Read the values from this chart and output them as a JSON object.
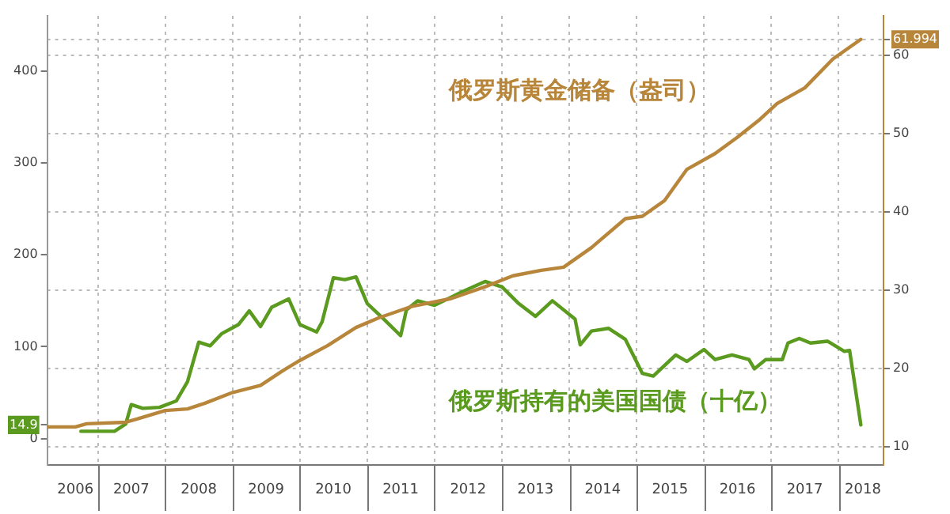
{
  "chart_data": {
    "type": "line",
    "grid": true,
    "legend": false,
    "marker": "none",
    "line_style": "solid",
    "xlim": [
      "2006-04",
      "2018-09"
    ],
    "xticks": [
      {
        "value": "2006-09-01",
        "label": "2006"
      },
      {
        "value": "2007-01-01",
        "label": null
      },
      {
        "value": "2007-07-01",
        "label": "2007"
      },
      {
        "value": "2008-01-01",
        "label": null
      },
      {
        "value": "2008-07-01",
        "label": "2008"
      },
      {
        "value": "2009-01-01",
        "label": null
      },
      {
        "value": "2009-07-01",
        "label": "2009"
      },
      {
        "value": "2010-01-01",
        "label": null
      },
      {
        "value": "2010-07-01",
        "label": "2010"
      },
      {
        "value": "2011-01-01",
        "label": null
      },
      {
        "value": "2011-07-01",
        "label": "2011"
      },
      {
        "value": "2012-01-01",
        "label": null
      },
      {
        "value": "2012-07-01",
        "label": "2012"
      },
      {
        "value": "2013-01-01",
        "label": null
      },
      {
        "value": "2013-07-01",
        "label": "2013"
      },
      {
        "value": "2014-01-01",
        "label": null
      },
      {
        "value": "2014-07-01",
        "label": "2014"
      },
      {
        "value": "2015-01-01",
        "label": null
      },
      {
        "value": "2015-07-01",
        "label": "2015"
      },
      {
        "value": "2016-01-01",
        "label": null
      },
      {
        "value": "2016-07-01",
        "label": "2016"
      },
      {
        "value": "2017-01-01",
        "label": null
      },
      {
        "value": "2017-07-01",
        "label": "2017"
      },
      {
        "value": "2018-01-01",
        "label": null
      },
      {
        "value": "2018-05-12",
        "label": "2018"
      }
    ],
    "ylim": [
      -29,
      460
    ],
    "yticks": [
      0,
      {
        "value": 14.9,
        "label": "14.9"
      },
      100,
      200,
      300,
      400
    ],
    "y2lim": [
      7.6,
      65
    ],
    "y2ticks": [
      10,
      20,
      30,
      40,
      50,
      60,
      {
        "value": 61.994,
        "label": "61.994"
      }
    ],
    "series": [
      {
        "name": "俄罗斯黄金储备（盎司）",
        "color": "#b8863b",
        "axis": "y2",
        "x": [
          "2006-04",
          "2006-09",
          "2006-11",
          "2007-06",
          "2007-08",
          "2008-01",
          "2008-05",
          "2008-08",
          "2009-01",
          "2009-06",
          "2009-10",
          "2010-01",
          "2010-06",
          "2010-11",
          "2011-03",
          "2011-09",
          "2012-04",
          "2012-10",
          "2013-03",
          "2013-08",
          "2013-12",
          "2014-05",
          "2014-11",
          "2015-02",
          "2015-06",
          "2015-10",
          "2016-03",
          "2016-07",
          "2016-11",
          "2017-02",
          "2017-07",
          "2017-12",
          "2018-05"
        ],
        "values": [
          12.5,
          12.5,
          12.9,
          13.1,
          13.5,
          14.6,
          14.8,
          15.5,
          16.9,
          17.8,
          19.7,
          21.0,
          22.9,
          25.2,
          26.4,
          27.9,
          28.9,
          30.4,
          31.8,
          32.5,
          32.9,
          35.4,
          39.1,
          39.4,
          41.4,
          45.4,
          47.4,
          49.5,
          51.8,
          53.8,
          55.8,
          59.5,
          61.994
        ]
      },
      {
        "name": "俄罗斯持有的美国国债（十亿）",
        "color": "#5a9a1e",
        "axis": "y",
        "x": [
          "2006-10",
          "2007-04",
          "2007-06",
          "2007-07",
          "2007-09",
          "2007-12",
          "2008-03",
          "2008-05",
          "2008-07",
          "2008-09",
          "2008-11",
          "2009-02",
          "2009-04",
          "2009-06",
          "2009-08",
          "2009-11",
          "2010-01",
          "2010-04",
          "2010-05",
          "2010-07",
          "2010-09",
          "2010-11",
          "2011-01",
          "2011-04",
          "2011-07",
          "2011-08",
          "2011-10",
          "2012-01",
          "2012-06",
          "2012-10",
          "2013-01",
          "2013-04",
          "2013-07",
          "2013-10",
          "2014-02",
          "2014-03",
          "2014-05",
          "2014-08",
          "2014-11",
          "2015-02",
          "2015-04",
          "2015-08",
          "2015-10",
          "2016-01",
          "2016-03",
          "2016-06",
          "2016-09",
          "2016-10",
          "2016-12",
          "2017-03",
          "2017-04",
          "2017-06",
          "2017-08",
          "2017-11",
          "2018-02",
          "2018-03",
          "2018-05"
        ],
        "values": [
          8,
          8,
          16,
          37,
          33,
          34,
          41,
          62,
          105,
          101,
          114,
          124,
          139,
          122,
          143,
          152,
          124,
          116,
          127,
          175,
          173,
          176,
          147,
          130,
          112,
          140,
          150,
          145,
          160,
          171,
          165,
          147,
          133,
          150,
          130,
          102,
          117,
          120,
          108,
          71,
          68,
          91,
          84,
          97,
          86,
          91,
          86,
          76,
          86,
          86,
          104,
          109,
          104,
          106,
          95,
          96,
          14.9
        ]
      }
    ]
  }
}
